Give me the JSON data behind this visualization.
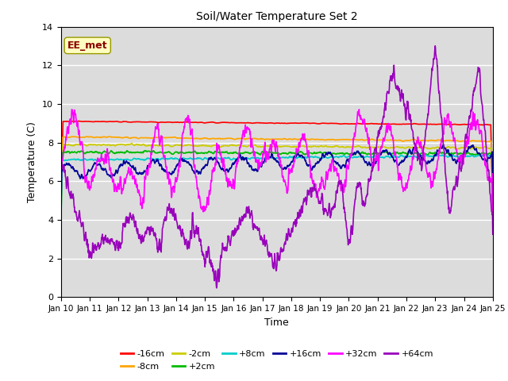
{
  "title": "Soil/Water Temperature Set 2",
  "xlabel": "Time",
  "ylabel": "Temperature (C)",
  "ylim": [
    0,
    14
  ],
  "xlim": [
    0,
    15
  ],
  "xtick_labels": [
    "Jan 10",
    "Jan 11",
    "Jan 12",
    "Jan 13",
    "Jan 14",
    "Jan 15",
    "Jan 16",
    "Jan 17",
    "Jan 18",
    "Jan 19",
    "Jan 20",
    "Jan 21",
    "Jan 22",
    "Jan 23",
    "Jan 24",
    "Jan 25"
  ],
  "ytick_values": [
    0,
    2,
    4,
    6,
    8,
    10,
    12,
    14
  ],
  "annotation_text": "EE_met",
  "annotation_color": "#8B0000",
  "annotation_bg": "#FFFFC0",
  "bg_color": "#DCDCDC",
  "colors": {
    "-16cm": "#FF0000",
    "-8cm": "#FFA500",
    "-2cm": "#CCCC00",
    "+2cm": "#00BB00",
    "+8cm": "#00CCCC",
    "+16cm": "#000099",
    "+32cm": "#FF00FF",
    "+64cm": "#9900BB"
  },
  "legend_order": [
    "-16cm",
    "-8cm",
    "-2cm",
    "+2cm",
    "+8cm",
    "+16cm",
    "+32cm",
    "+64cm"
  ],
  "legend_ncol_row1": 6,
  "figsize": [
    6.4,
    4.8
  ],
  "dpi": 100
}
